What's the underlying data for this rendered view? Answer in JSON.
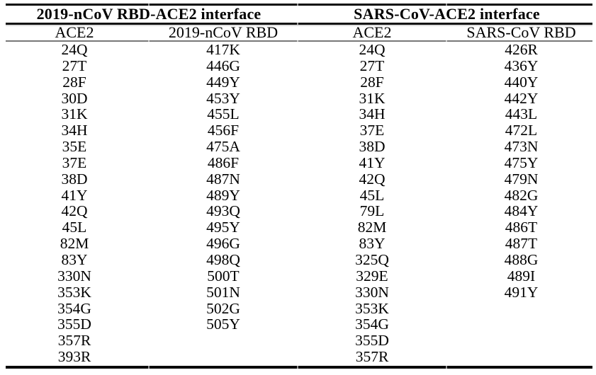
{
  "table": {
    "groups": [
      {
        "title": "2019-nCoV RBD-ACE2 interface"
      },
      {
        "title": "SARS-CoV-ACE2 interface"
      }
    ],
    "columns": [
      {
        "header": "ACE2",
        "values": [
          "24Q",
          "27T",
          "28F",
          "30D",
          "31K",
          "34H",
          "35E",
          "37E",
          "38D",
          "41Y",
          "42Q",
          "45L",
          "82M",
          "83Y",
          "330N",
          "353K",
          "354G",
          "355D",
          "357R",
          "393R"
        ]
      },
      {
        "header": "2019-nCoV RBD",
        "values": [
          "417K",
          "446G",
          "449Y",
          "453Y",
          "455L",
          "456F",
          "475A",
          "486F",
          "487N",
          "489Y",
          "493Q",
          "495Y",
          "496G",
          "498Q",
          "500T",
          "501N",
          "502G",
          "505Y"
        ]
      },
      {
        "header": "ACE2",
        "values": [
          "24Q",
          "27T",
          "28F",
          "31K",
          "34H",
          "37E",
          "38D",
          "41Y",
          "42Q",
          "45L",
          "79L",
          "82M",
          "83Y",
          "325Q",
          "329E",
          "330N",
          "353K",
          "354G",
          "355D",
          "357R"
        ]
      },
      {
        "header": "SARS-CoV RBD",
        "values": [
          "426R",
          "436Y",
          "440Y",
          "442Y",
          "443L",
          "472L",
          "473N",
          "475Y",
          "479N",
          "482G",
          "484Y",
          "486T",
          "487T",
          "488G",
          "489I",
          "491Y"
        ]
      }
    ],
    "colors": {
      "text": "#000000",
      "rule_dark": "#0a0a0a",
      "rule_light": "#787878",
      "background": "#ffffff"
    }
  }
}
